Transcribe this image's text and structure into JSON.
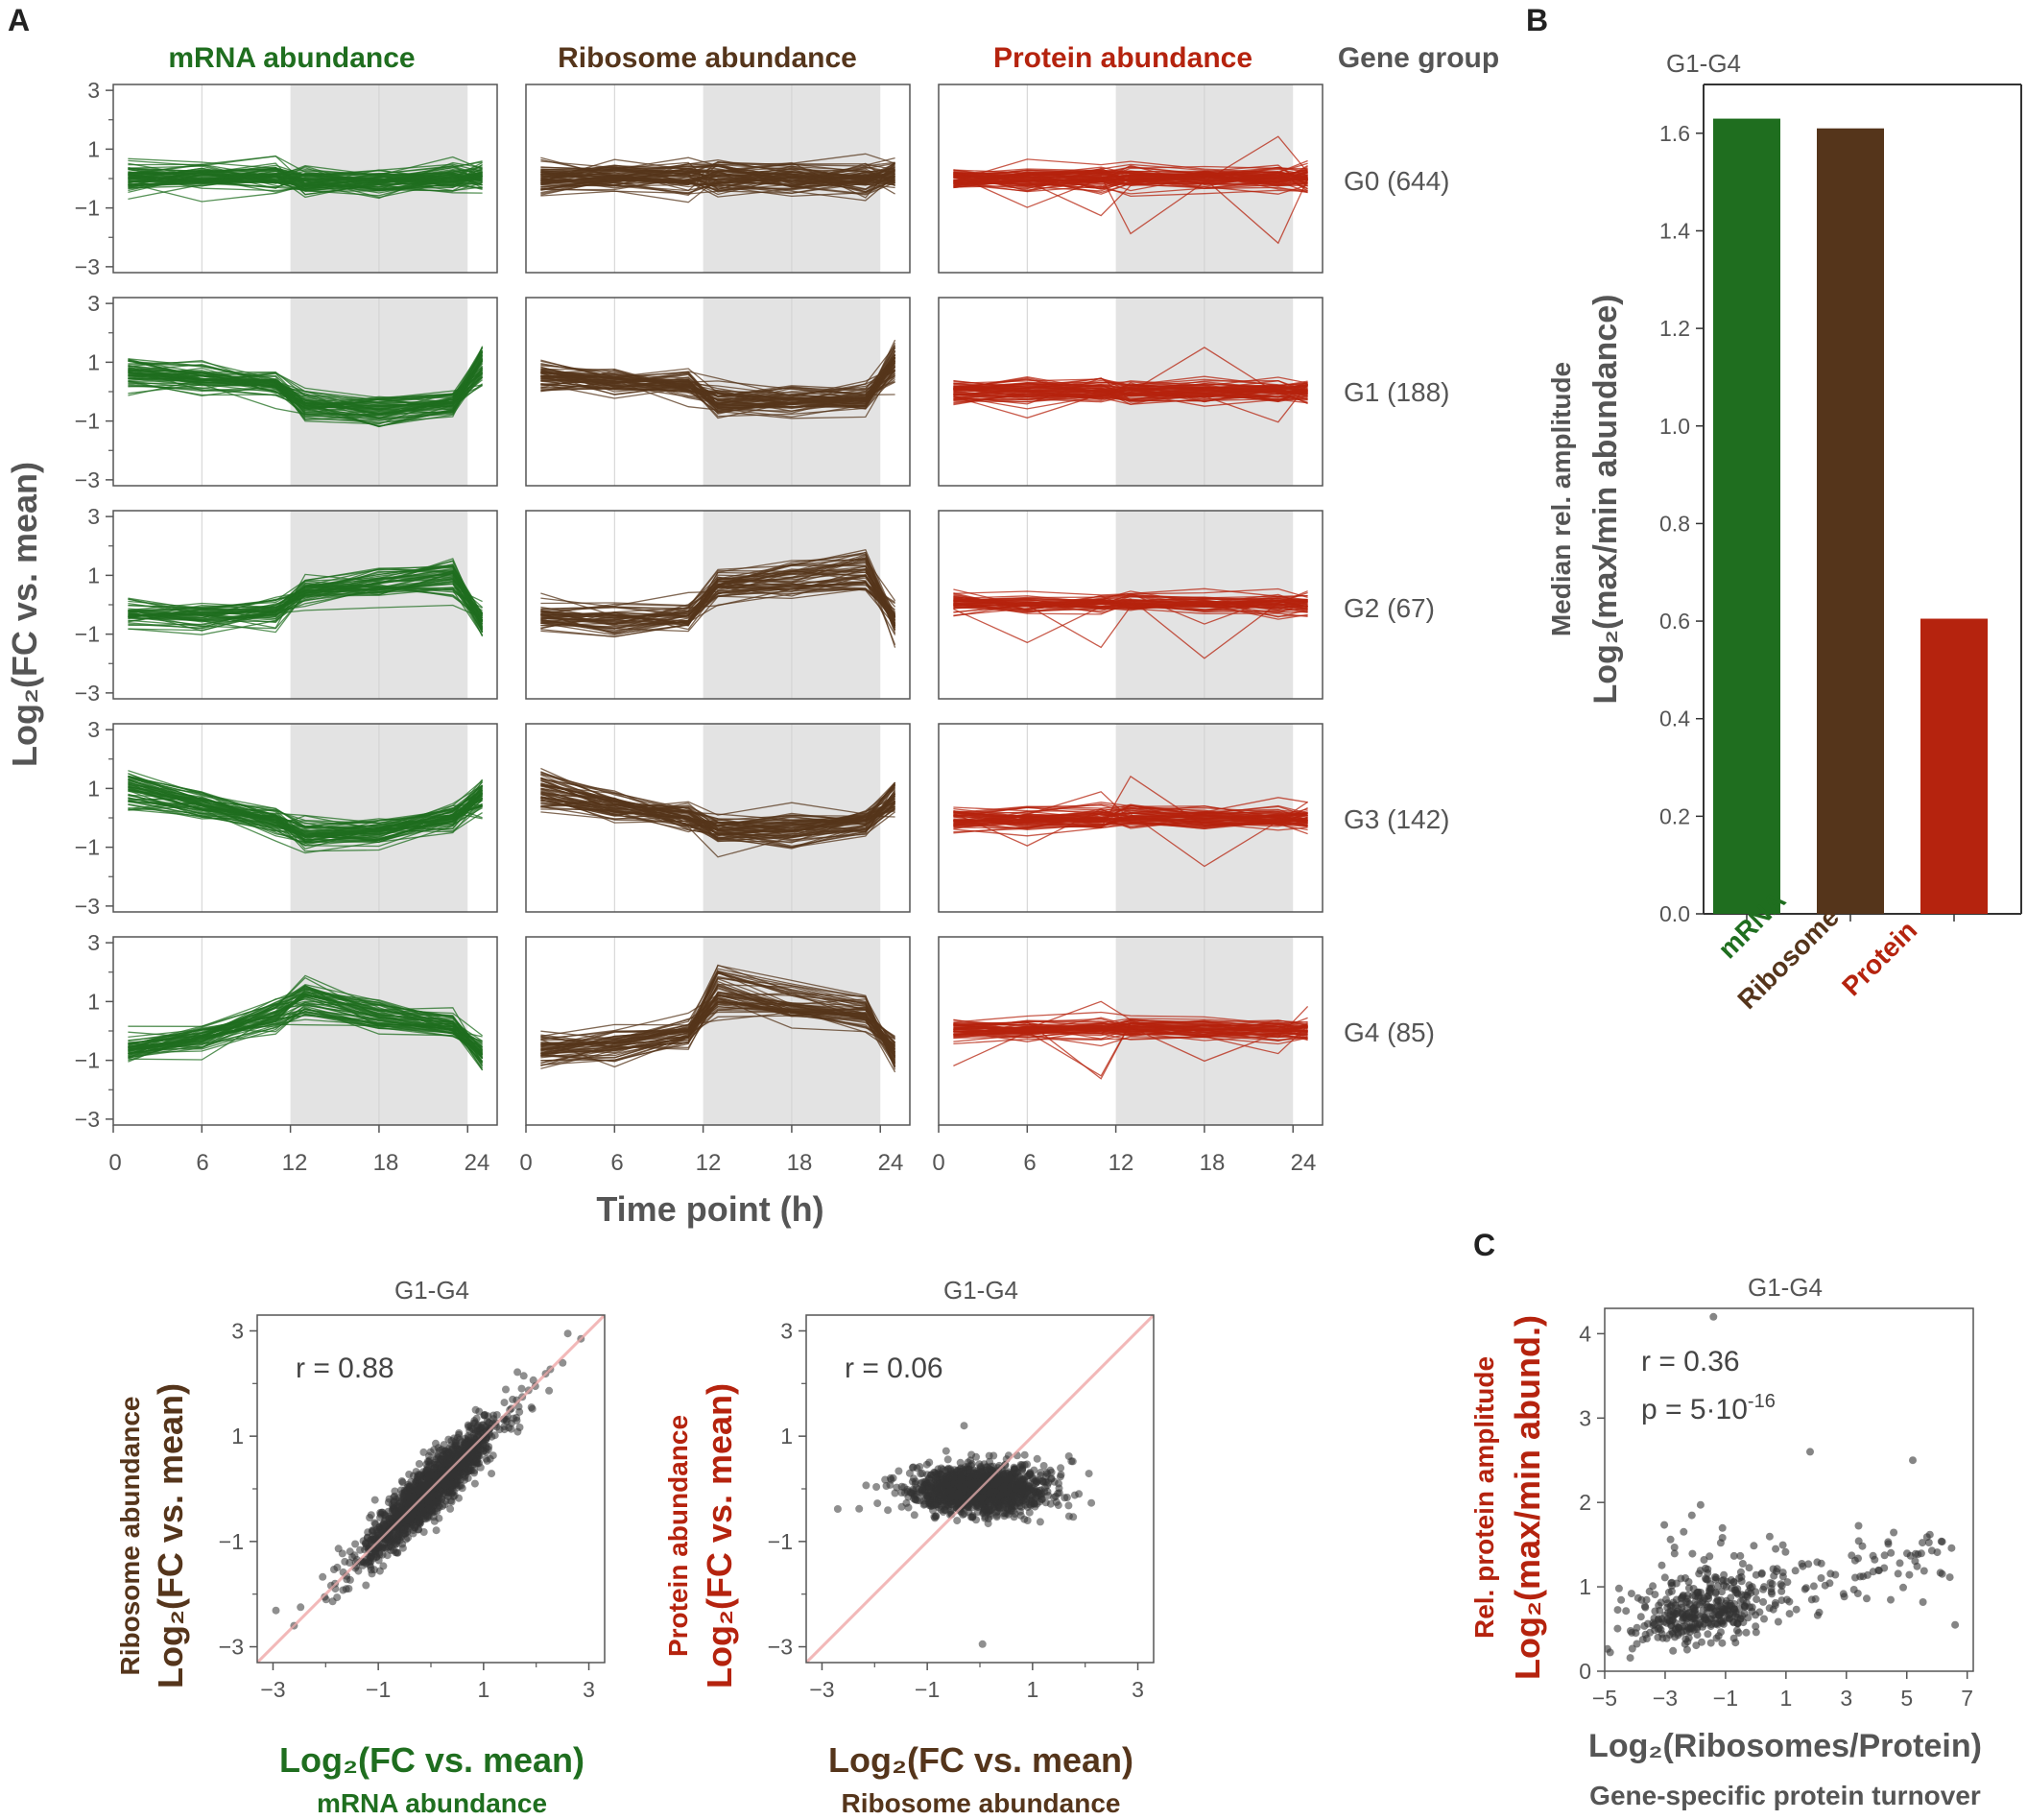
{
  "colors": {
    "mrna": "#1f6e1f",
    "ribosome": "#55351b",
    "protein": "#b5230e",
    "axis_text": "#555555",
    "gray_band": "#e3e3e3",
    "diag_line": "#f2b8b8",
    "point": "#333333"
  },
  "panel_labels": {
    "a": "A",
    "b": "B",
    "c": "C"
  },
  "chart_data": [
    {
      "id": "panel-a",
      "type": "line",
      "column_titles": [
        "mRNA abundance",
        "Ribosome abundance",
        "Protein abundance"
      ],
      "row_header": "Gene group",
      "rows": [
        {
          "group": "G0",
          "count": "G0 (644)",
          "label_suffix": "(644)"
        },
        {
          "group": "G1",
          "count": "G1 (188)"
        },
        {
          "group": "G2",
          "count": "G2 (67)"
        },
        {
          "group": "G3",
          "count": "G3 (142)"
        },
        {
          "group": "G4",
          "count": "G4 (85)"
        }
      ],
      "x": [
        1,
        6,
        11,
        13,
        18,
        23,
        25
      ],
      "xlim": [
        0,
        26
      ],
      "ylim": [
        -3.2,
        3.2
      ],
      "shaded_region": [
        12,
        24
      ],
      "xticks": [
        "0",
        "6",
        "12",
        "18",
        "24"
      ],
      "yticks": [
        "3",
        "1",
        "−1",
        "−3"
      ],
      "xlabel": "Time point (h)",
      "ylabel": "Log₂(FC vs. mean)",
      "profiles": {
        "mRNA": {
          "G0": [
            0.0,
            0.0,
            0.05,
            -0.1,
            -0.1,
            0.0,
            0.1
          ],
          "G1": [
            0.6,
            0.45,
            0.25,
            -0.45,
            -0.6,
            -0.4,
            0.9
          ],
          "G2": [
            -0.3,
            -0.35,
            -0.25,
            0.35,
            0.55,
            0.8,
            -0.5
          ],
          "G3": [
            0.9,
            0.4,
            -0.1,
            -0.55,
            -0.45,
            0.0,
            0.7
          ],
          "G4": [
            -0.5,
            -0.2,
            0.5,
            1.0,
            0.5,
            0.2,
            -0.7
          ]
        },
        "Ribosome": {
          "G0": [
            0.0,
            0.0,
            0.05,
            0.05,
            0.0,
            0.0,
            0.1
          ],
          "G1": [
            0.5,
            0.3,
            0.2,
            -0.3,
            -0.35,
            -0.25,
            0.9
          ],
          "G2": [
            -0.3,
            -0.45,
            -0.35,
            0.55,
            0.75,
            1.0,
            -0.5
          ],
          "G3": [
            0.9,
            0.4,
            0.0,
            -0.4,
            -0.4,
            -0.1,
            0.6
          ],
          "G4": [
            -0.7,
            -0.5,
            -0.1,
            1.3,
            0.9,
            0.6,
            -0.8
          ]
        },
        "Protein": {
          "G0": [
            0.0,
            0.0,
            0.05,
            0.0,
            0.0,
            0.0,
            0.0
          ],
          "G1": [
            0.0,
            0.0,
            0.0,
            0.0,
            0.0,
            0.0,
            0.0
          ],
          "G2": [
            0.0,
            0.0,
            0.05,
            0.05,
            0.0,
            0.0,
            0.0
          ],
          "G3": [
            0.0,
            0.0,
            0.05,
            0.1,
            0.0,
            0.0,
            0.0
          ],
          "G4": [
            0.0,
            0.0,
            0.05,
            0.1,
            0.05,
            0.0,
            0.0
          ]
        }
      }
    },
    {
      "id": "panel-b",
      "type": "bar",
      "title": "G1-G4",
      "categories": [
        "mRNA",
        "Ribosome",
        "Protein"
      ],
      "values": [
        1.63,
        1.61,
        0.605
      ],
      "ylim": [
        0,
        1.7
      ],
      "yticks": [
        "0.0",
        "0.2",
        "0.4",
        "0.6",
        "0.8",
        "1.0",
        "1.2",
        "1.4",
        "1.6"
      ],
      "ylabel_line1": "Median rel. amplitude",
      "ylabel_line2": "Log₂(max/min abundance)"
    },
    {
      "id": "scatter-mrna-ribosome",
      "type": "scatter",
      "title": "G1-G4",
      "annotation": "r = 0.88",
      "r": 0.88,
      "n_points": 1600,
      "x_sd": 0.6,
      "xlim": [
        -3.3,
        3.3
      ],
      "ylim": [
        -3.3,
        3.3
      ],
      "xticks": [
        "−3",
        "−1",
        "1",
        "3"
      ],
      "yticks": [
        "3",
        "1",
        "−1",
        "−3"
      ],
      "xlabel": "Log₂(FC vs. mean)",
      "xlabel_sub": "mRNA abundance",
      "ylabel": "Log₂(FC vs. mean)",
      "ylabel_sub": "Ribosome abundance"
    },
    {
      "id": "scatter-ribosome-protein",
      "type": "scatter",
      "title": "G1-G4",
      "annotation": "r = 0.06",
      "r": 0.06,
      "n_points": 1600,
      "x_sd": 0.55,
      "xlim": [
        -3.3,
        3.3
      ],
      "ylim": [
        -3.3,
        3.3
      ],
      "xticks": [
        "−3",
        "−1",
        "1",
        "3"
      ],
      "yticks": [
        "3",
        "1",
        "−1",
        "−3"
      ],
      "xlabel": "Log₂(FC vs. mean)",
      "xlabel_sub": "Ribosome abundance",
      "ylabel": "Log₂(FC vs. mean)",
      "ylabel_sub": "Protein abundance"
    },
    {
      "id": "panel-c",
      "type": "scatter",
      "title": "G1-G4",
      "annotation_r": "r = 0.36",
      "annotation_p_base": "p = 5·10",
      "annotation_p_exp": "-16",
      "r": 0.36,
      "n_points": 480,
      "xlim": [
        -5,
        7.2
      ],
      "ylim": [
        0,
        4.3
      ],
      "xticks": [
        "−5",
        "−3",
        "−1",
        "1",
        "3",
        "5",
        "7"
      ],
      "yticks": [
        "0",
        "1",
        "2",
        "3",
        "4"
      ],
      "xlabel": "Log₂(Ribosomes/Protein)",
      "xlabel_sub": "Gene-specific protein turnover",
      "ylabel": "Log₂(max/min abund.)",
      "ylabel_sub": "Rel. protein amplitude"
    }
  ]
}
